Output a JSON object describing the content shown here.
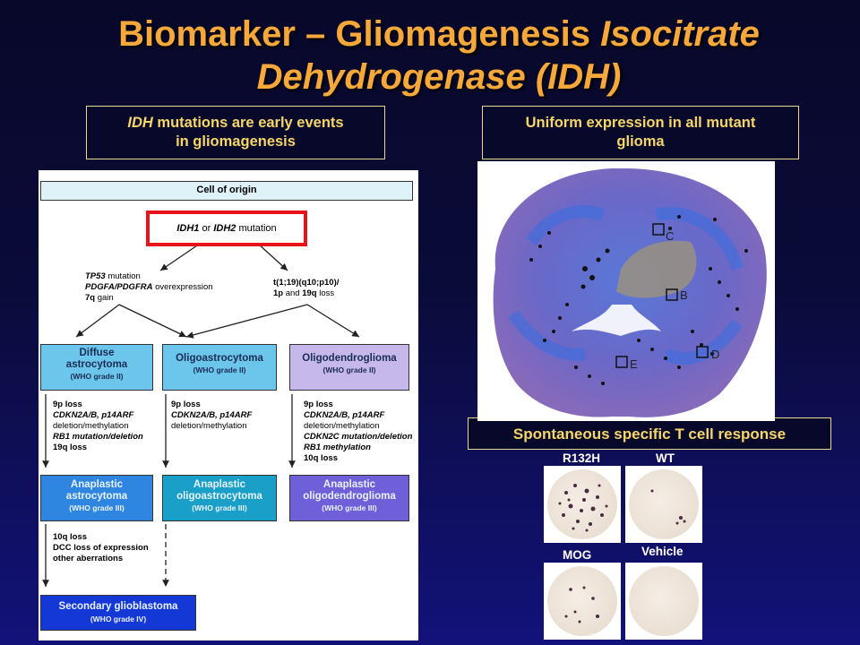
{
  "title": {
    "part1": "Biomarker – Gliomagenesis ",
    "part2": "Isocitrate",
    "line2": "Dehydrogenase (IDH)"
  },
  "callouts": {
    "left": {
      "italic": "IDH",
      "rest": " mutations are early events",
      "line2": "in gliomagenesis"
    },
    "right": {
      "line1": "Uniform expression in all mutant",
      "line2": "glioma"
    },
    "tcell": "Spontaneous specific T cell response"
  },
  "diagram": {
    "cell_of_origin": "Cell of origin",
    "idh": {
      "a": "IDH1",
      "or": " or ",
      "b": "IDH2",
      "rest": " mutation"
    },
    "left_branch": {
      "l1a": "TP53",
      "l1b": " mutation",
      "l2a": "PDGFA/PDGFRA",
      "l2b": " overexpression",
      "l3a": "7q",
      "l3b": " gain"
    },
    "right_branch": {
      "l1": "t(1;19)(q10;p10)/",
      "l2a": "1p",
      "l2b": " and ",
      "l2c": "19q",
      "l2d": " loss"
    },
    "grade2": [
      {
        "name1": "Diffuse",
        "name2": "astrocytoma",
        "grade": "(WHO grade II)"
      },
      {
        "name1": "Oligoastrocytoma",
        "name2": "",
        "grade": "(WHO grade II)"
      },
      {
        "name1": "Oligodendroglioma",
        "name2": "",
        "grade": "(WHO grade II)"
      }
    ],
    "col1_events": [
      "9p loss",
      "CDKN2A/B, p14ARF",
      "deletion/methylation",
      "RB1 mutation/deletion",
      "19q loss"
    ],
    "col2_events": [
      "9p loss",
      "CDKN2A/B, p14ARF",
      "deletion/methylation"
    ],
    "col3_events": [
      "9p loss",
      "CDKN2A/B, p14ARF",
      "deletion/methylation",
      "CDKN2C mutation/deletion",
      "RB1 methylation",
      "10q loss"
    ],
    "grade3": [
      {
        "name1": "Anaplastic",
        "name2": "astrocytoma",
        "grade": "(WHO grade III)"
      },
      {
        "name1": "Anaplastic",
        "name2": "oligoastrocytoma",
        "grade": "(WHO grade III)"
      },
      {
        "name1": "Anaplastic",
        "name2": "oligodendroglioma",
        "grade": "(WHO grade III)"
      }
    ],
    "col1_events2": [
      "10q loss",
      "DCC loss of expression",
      "other aberrations"
    ],
    "grade4": {
      "name": "Secondary glioblastoma",
      "grade": "(WHO grade IV)"
    }
  },
  "mri_labels": {
    "c": "C",
    "b": "B",
    "d": "D",
    "e": "E"
  },
  "wells": {
    "r132h": "R132H",
    "wt": "WT",
    "mog": "MOG",
    "vehicle": "Vehicle"
  },
  "colors": {
    "title": "#f6a83a",
    "callout_text": "#f6d66a",
    "highlight": "#e8121a"
  }
}
